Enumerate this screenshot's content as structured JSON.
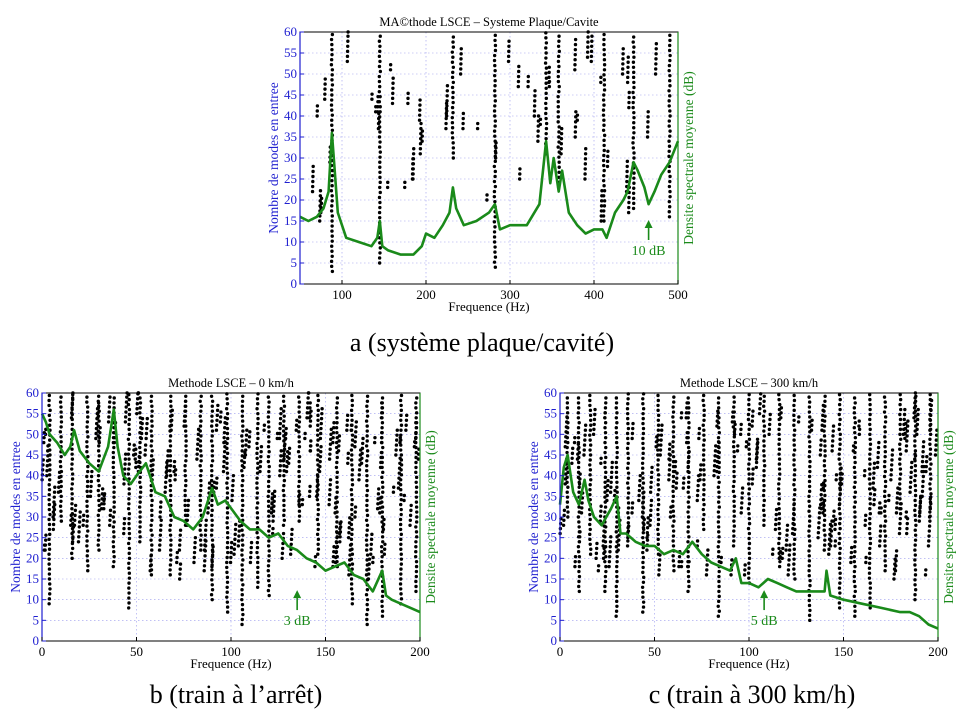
{
  "figure": {
    "captions": [
      "a (système plaque/cavité)",
      "b (train à l’arrêt)",
      "c (train à 300 km/h)"
    ]
  },
  "colors": {
    "curve": "#1a8a1a",
    "left_axis": "#1f1fd0",
    "right_axis": "#1a8a1a",
    "points": "#000000",
    "grid": "#9a9aee"
  },
  "chart_data": [
    {
      "type": "scatter",
      "title": "MA©thode LSCE – Systeme Plaque/Cavite",
      "xlabel": "Frequence (Hz)",
      "ylabel": "Nombre de modes en entree",
      "y2label": "Densite spectrale moyenne (dB)",
      "xlim": [
        50,
        500
      ],
      "ylim": [
        0,
        60
      ],
      "xticks": [
        100,
        200,
        300,
        400,
        500
      ],
      "yticks": [
        0,
        5,
        10,
        15,
        20,
        25,
        30,
        35,
        40,
        45,
        50,
        55,
        60
      ],
      "grid": true,
      "annotation": {
        "text": "10 dB",
        "x": 465,
        "y": 10
      },
      "stable_pole_columns": [
        88,
        145,
        232,
        282,
        343,
        358,
        412,
        447,
        490
      ],
      "series": [
        {
          "kind": "line",
          "x": [
            50,
            60,
            70,
            78,
            84,
            88,
            91,
            95,
            105,
            120,
            135,
            142,
            145,
            148,
            155,
            170,
            185,
            195,
            200,
            210,
            220,
            228,
            232,
            236,
            245,
            260,
            275,
            282,
            288,
            300,
            320,
            335,
            343,
            348,
            352,
            358,
            362,
            370,
            380,
            390,
            400,
            410,
            415,
            425,
            435,
            440,
            447,
            452,
            460,
            465,
            472,
            480,
            490,
            500
          ],
          "y": [
            16,
            15,
            16,
            18,
            22,
            36,
            28,
            17,
            11,
            10,
            9,
            11,
            15,
            9,
            8,
            7,
            7,
            9,
            12,
            11,
            14,
            17,
            23,
            18,
            14,
            15,
            17,
            19,
            13,
            14,
            14,
            19,
            34,
            24,
            30,
            22,
            27,
            17,
            14,
            12,
            13,
            13,
            11,
            17,
            20,
            22,
            29,
            27,
            23,
            19,
            22,
            26,
            29,
            34
          ]
        }
      ]
    },
    {
      "type": "scatter",
      "title": "Methode LSCE – 0 km/h",
      "xlabel": "Frequence (Hz)",
      "ylabel": "Nombre de modes en entree",
      "y2label": "Densite spectrale moyenne (dB)",
      "xlim": [
        0,
        200
      ],
      "ylim": [
        0,
        60
      ],
      "xticks": [
        0,
        50,
        100,
        150,
        200
      ],
      "yticks": [
        0,
        5,
        10,
        15,
        20,
        25,
        30,
        35,
        40,
        45,
        50,
        55,
        60
      ],
      "grid": true,
      "annotation": {
        "text": "3 dB",
        "x": 135,
        "y": 7
      },
      "stable_pole_columns": [
        4,
        10,
        16,
        24,
        30,
        38,
        46,
        52,
        58,
        68,
        76,
        84,
        90,
        98,
        106,
        114,
        120,
        128,
        136,
        146,
        156,
        164,
        172,
        180,
        190,
        198
      ],
      "series": [
        {
          "kind": "line",
          "x": [
            0,
            2,
            4,
            8,
            12,
            15,
            17,
            20,
            25,
            30,
            35,
            38,
            40,
            43,
            47,
            50,
            55,
            60,
            65,
            70,
            75,
            80,
            85,
            90,
            93,
            97,
            105,
            110,
            115,
            120,
            125,
            130,
            135,
            140,
            145,
            150,
            155,
            160,
            165,
            170,
            175,
            180,
            182,
            185,
            190,
            195,
            200
          ],
          "y": [
            55,
            53,
            50,
            48,
            45,
            47,
            51,
            46,
            43,
            41,
            47,
            56,
            47,
            40,
            38,
            40,
            43,
            36,
            35,
            30,
            29,
            27,
            30,
            37,
            33,
            34,
            29,
            27,
            27,
            25,
            26,
            23,
            22,
            20,
            19,
            17,
            18,
            19,
            16,
            15,
            12,
            17,
            11,
            10,
            9,
            8,
            7
          ]
        }
      ]
    },
    {
      "type": "scatter",
      "title": "Methode LSCE – 300 km/h",
      "xlabel": "Frequence (Hz)",
      "ylabel": "Nombre de modes en entree",
      "y2label": "Densite spectrale moyenne (dB)",
      "xlim": [
        0,
        200
      ],
      "ylim": [
        0,
        60
      ],
      "xticks": [
        0,
        50,
        100,
        150,
        200
      ],
      "yticks": [
        0,
        5,
        10,
        15,
        20,
        25,
        30,
        35,
        40,
        45,
        50,
        55,
        60
      ],
      "grid": true,
      "annotation": {
        "text": "5 dB",
        "x": 108,
        "y": 7
      },
      "stable_pole_columns": [
        4,
        10,
        16,
        24,
        30,
        36,
        44,
        52,
        60,
        68,
        76,
        84,
        92,
        100,
        108,
        116,
        124,
        132,
        140,
        148,
        156,
        164,
        172,
        180,
        188,
        196
      ],
      "series": [
        {
          "kind": "line",
          "x": [
            0,
            2,
            4,
            7,
            10,
            13,
            15,
            18,
            22,
            27,
            30,
            32,
            35,
            40,
            45,
            50,
            55,
            60,
            65,
            70,
            75,
            80,
            85,
            90,
            93,
            96,
            100,
            105,
            110,
            115,
            120,
            125,
            130,
            135,
            140,
            141,
            143,
            150,
            160,
            170,
            180,
            185,
            190,
            195,
            200
          ],
          "y": [
            33,
            42,
            45,
            36,
            33,
            39,
            34,
            30,
            28,
            32,
            35,
            26,
            26,
            24,
            23,
            23,
            21,
            22,
            21,
            24,
            21,
            19,
            18,
            17,
            20,
            14,
            14,
            13,
            15,
            14,
            13,
            12,
            12,
            12,
            12,
            17,
            11,
            10,
            9,
            8,
            7,
            7,
            6,
            4,
            3
          ]
        }
      ]
    }
  ]
}
